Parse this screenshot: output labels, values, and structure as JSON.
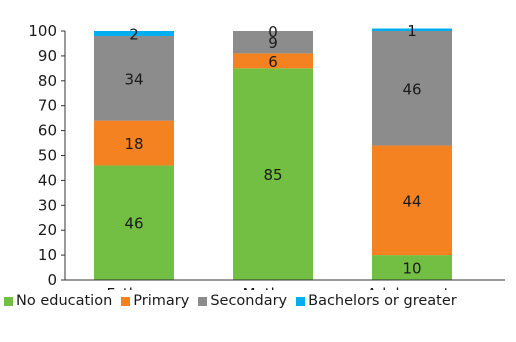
{
  "chart_data": {
    "type": "bar",
    "stacked": true,
    "categories": [
      "Fathers",
      "Mothers",
      "Adolescents"
    ],
    "series": [
      {
        "name": "No education",
        "color": "#72bf44",
        "values": [
          46,
          85,
          10
        ]
      },
      {
        "name": "Primary",
        "color": "#f58220",
        "values": [
          18,
          6,
          44
        ]
      },
      {
        "name": "Secondary",
        "color": "#8c8c8c",
        "values": [
          34,
          9,
          46
        ]
      },
      {
        "name": "Bachelors or greater",
        "color": "#00aeef",
        "values": [
          2,
          0,
          1
        ]
      }
    ],
    "y_ticks": [
      0,
      10,
      20,
      30,
      40,
      50,
      60,
      70,
      80,
      90,
      100
    ],
    "ylim": [
      0,
      100
    ],
    "grid": false,
    "legend_position": "bottom",
    "title": "",
    "xlabel": "",
    "ylabel": ""
  }
}
